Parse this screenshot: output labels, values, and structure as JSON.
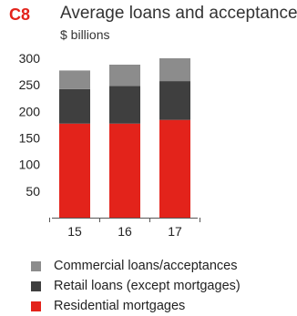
{
  "figure": {
    "id": "C8"
  },
  "chart_data": {
    "type": "bar",
    "stacked": true,
    "title": "Average loans and acceptances",
    "subtitle": "$ billions",
    "categories": [
      "15",
      "16",
      "17"
    ],
    "series": [
      {
        "name": "Residential mortgages",
        "color": "#e3231b",
        "values": [
          177,
          177,
          184
        ]
      },
      {
        "name": "Retail loans (except mortgages)",
        "color": "#3f3f3f",
        "values": [
          65,
          71,
          73
        ]
      },
      {
        "name": "Commercial loans/acceptances",
        "color": "#8c8c8c",
        "values": [
          35,
          40,
          43
        ]
      }
    ],
    "yticks": [
      50,
      100,
      150,
      200,
      250,
      300
    ],
    "ylim": [
      0,
      300
    ],
    "grid": false,
    "legend_position": "bottom",
    "legend_order": [
      2,
      1,
      0
    ]
  }
}
